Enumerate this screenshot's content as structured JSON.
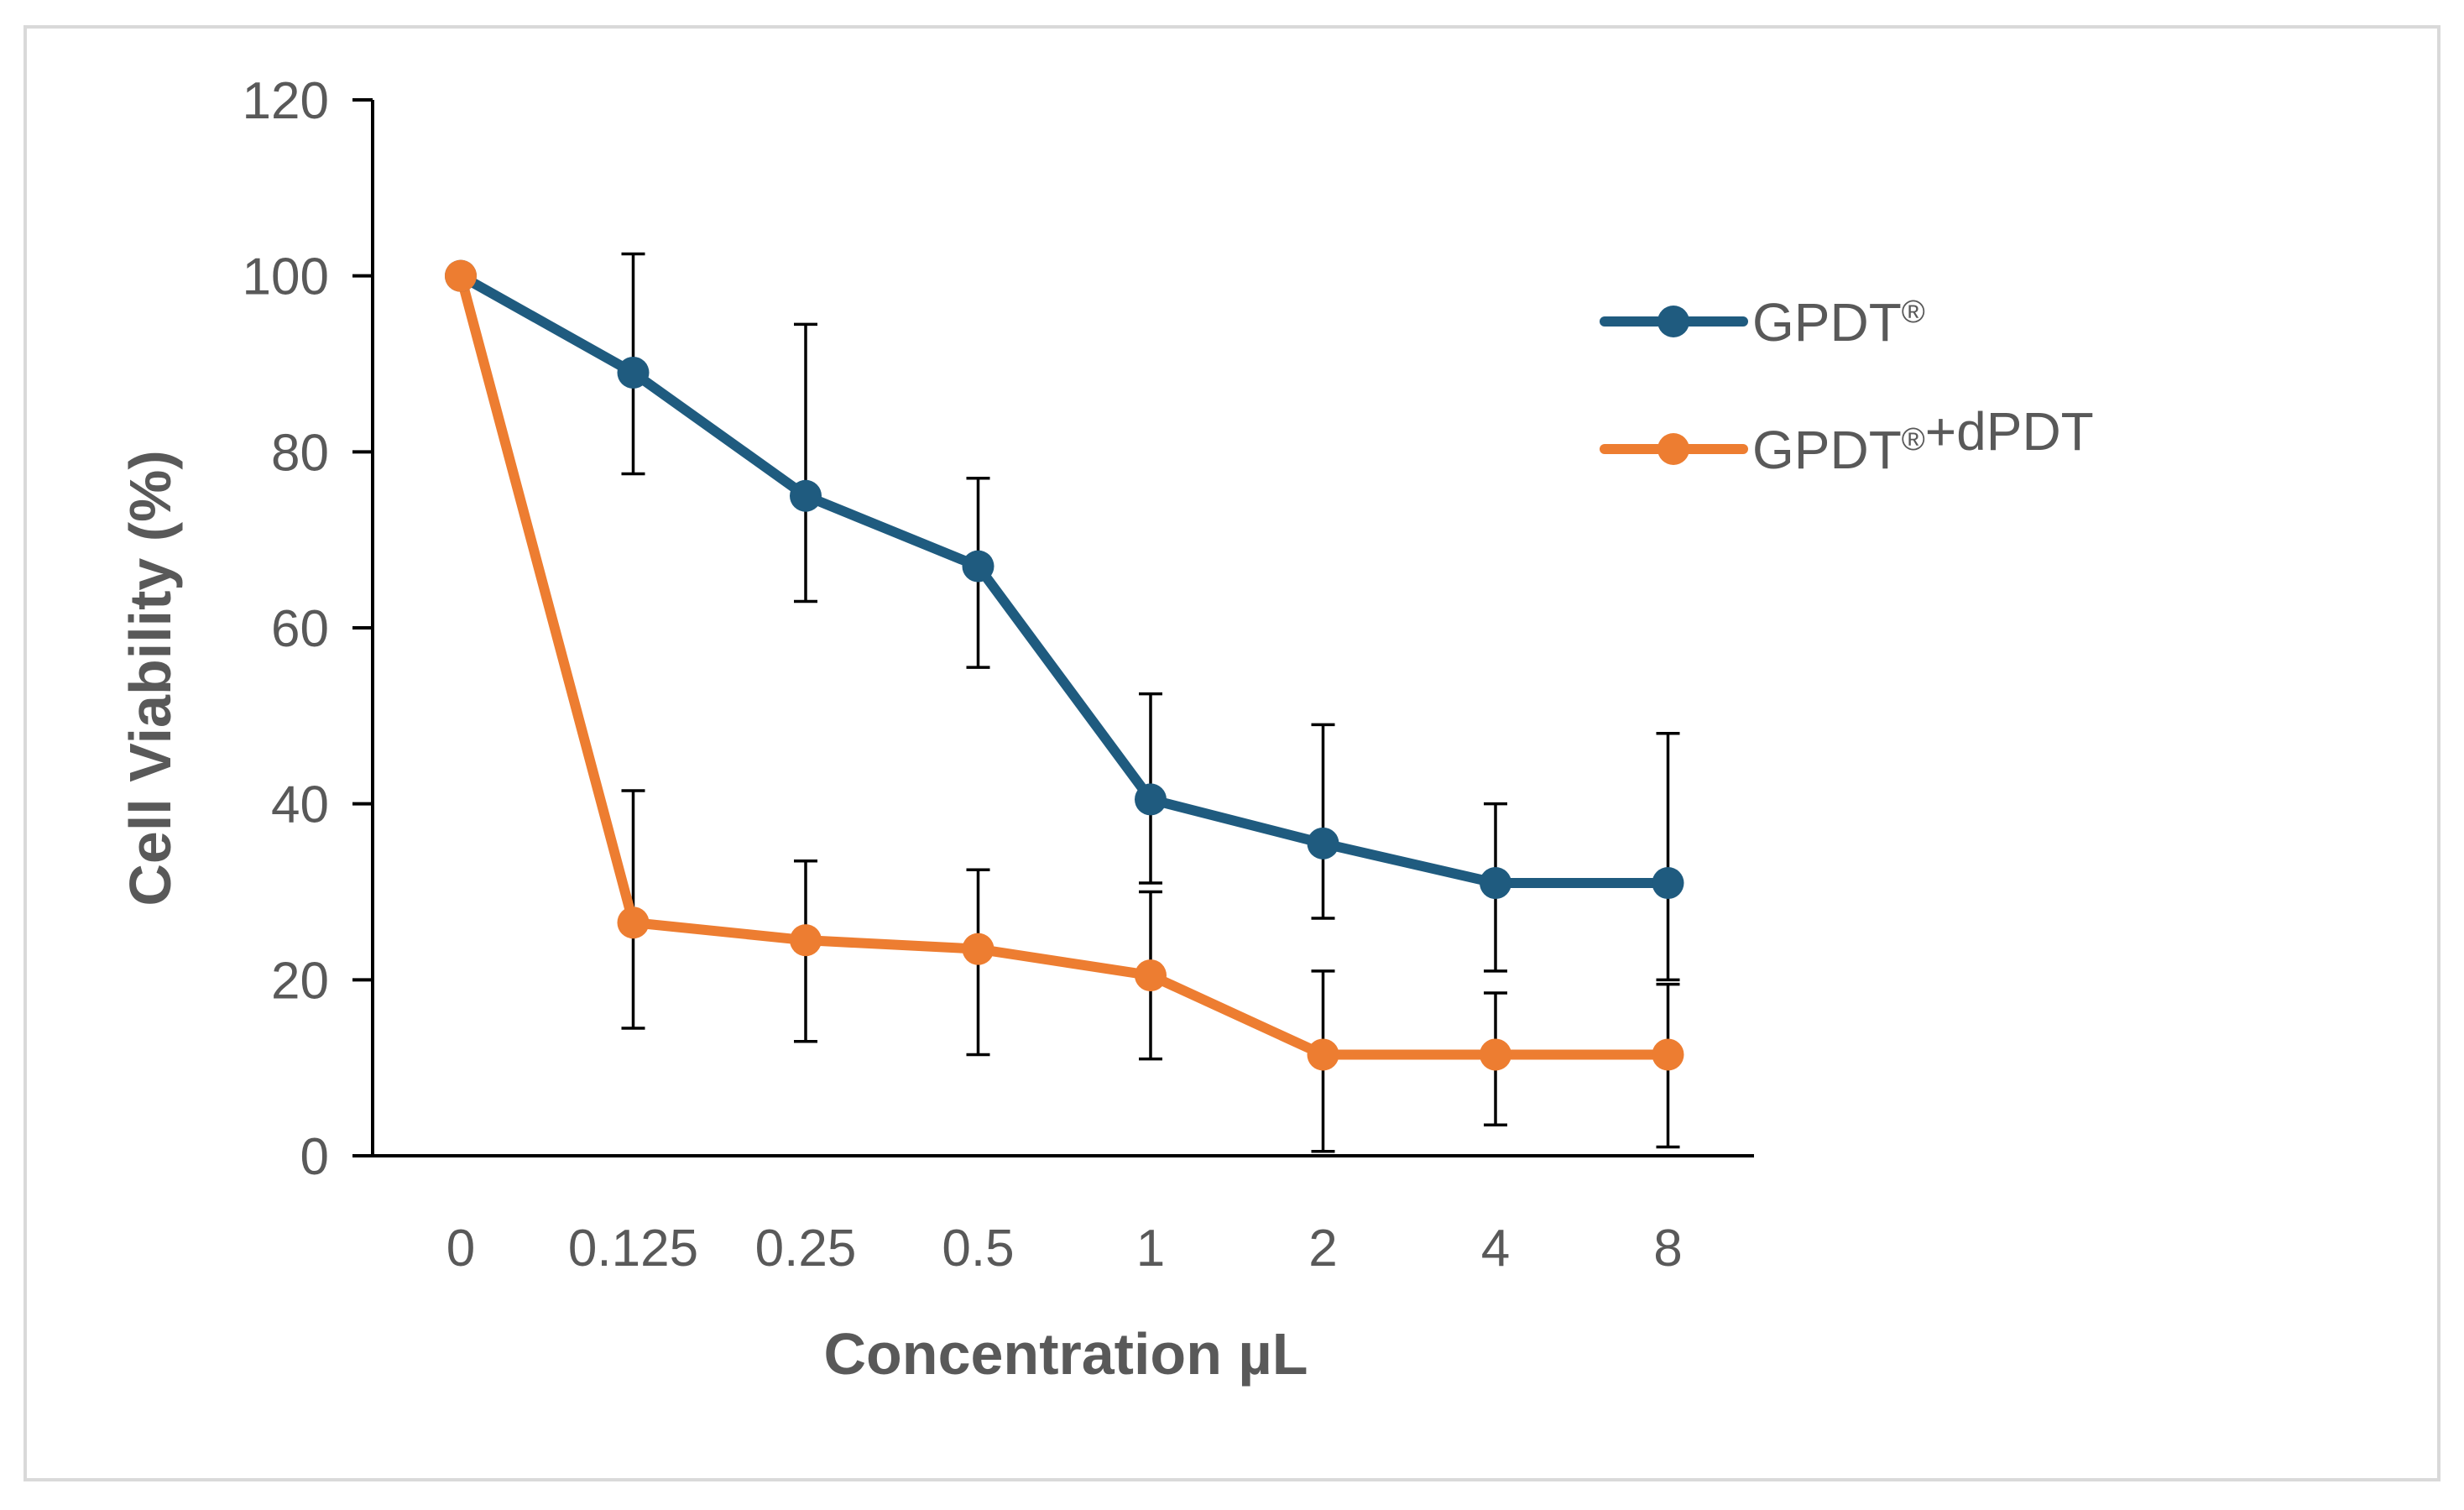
{
  "chart_data": {
    "type": "line",
    "title": "",
    "xlabel": "Concentration µL",
    "ylabel": "Cell Viability (%)",
    "categories": [
      "0",
      "0.125",
      "0.25",
      "0.5",
      "1",
      "2",
      "4",
      "8"
    ],
    "ylim": [
      0,
      120
    ],
    "yticks": [
      "0",
      "20",
      "40",
      "60",
      "80",
      "100",
      "120"
    ],
    "grid": false,
    "legend_position": "right",
    "series": [
      {
        "name": "GPDT®",
        "color": "#1f5b7f",
        "values": [
          100,
          89,
          75,
          67,
          40.5,
          35.5,
          31,
          31
        ],
        "error_low": [
          100,
          77.5,
          63,
          55.5,
          31,
          27,
          21,
          20
        ],
        "error_high": [
          100,
          102.5,
          94.5,
          77,
          52.5,
          49,
          40,
          48
        ]
      },
      {
        "name": "GPDT®+dPDT",
        "color": "#ed7d31",
        "values": [
          100,
          26.5,
          24.5,
          23.5,
          20.5,
          11.5,
          11.5,
          11.5
        ],
        "error_low": [
          100,
          14.5,
          13,
          11.5,
          11,
          0.5,
          3.5,
          1
        ],
        "error_high": [
          100,
          41.5,
          33.5,
          32.5,
          30,
          21,
          18.5,
          19.5
        ]
      }
    ]
  }
}
